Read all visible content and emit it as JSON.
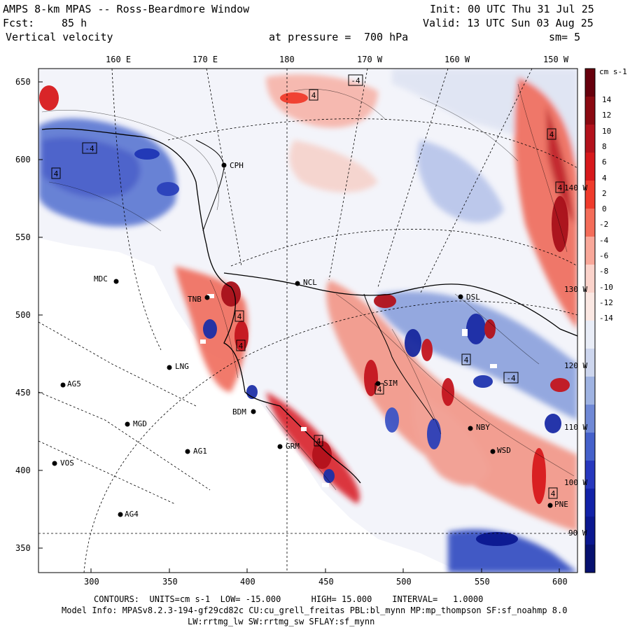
{
  "header": {
    "title": "AMPS 8-km MPAS -- Ross-Beardmore Window",
    "fcst_label": "Fcst:",
    "fcst_value": "85 h",
    "field": "Vertical velocity",
    "init": "Init: 00 UTC Thu 31 Jul 25",
    "valid": "Valid: 13 UTC Sun 03 Aug 25",
    "pressure_label": "at pressure =",
    "pressure_value": "700 hPa",
    "sm": "sm= 5"
  },
  "top_axis": [
    "160 E",
    "170 E",
    "180",
    "170 W",
    "160 W",
    "150 W"
  ],
  "left_axis": [
    "650",
    "600",
    "550",
    "500",
    "450",
    "400",
    "350"
  ],
  "bottom_axis": [
    "300",
    "350",
    "400",
    "450",
    "500",
    "550",
    "600"
  ],
  "right_lon_labels": [
    "140 W",
    "130 W",
    "120 W",
    "110 W",
    "100 W",
    "90 W"
  ],
  "colorbar": {
    "unit": "cm s-1",
    "ticks": [
      "14",
      "12",
      "10",
      "8",
      "6",
      "4",
      "2",
      "0",
      "-2",
      "-4",
      "-6",
      "-8",
      "-10",
      "-12",
      "-14"
    ],
    "colors": [
      "#67000d",
      "#8b0a12",
      "#b3121c",
      "#d7191c",
      "#ef3b2c",
      "#f46d5a",
      "#f9a89a",
      "#fbd3cb",
      "#fbe8e3",
      "#e9edf7",
      "#cdd6ee",
      "#9fb3e2",
      "#7089d6",
      "#4561cb",
      "#2738be",
      "#1222a8",
      "#0b1890",
      "#071170"
    ]
  },
  "stations": [
    {
      "name": "CPH"
    },
    {
      "name": "NCL"
    },
    {
      "name": "MDC"
    },
    {
      "name": "TNB"
    },
    {
      "name": "LNG"
    },
    {
      "name": "AG5"
    },
    {
      "name": "MGD"
    },
    {
      "name": "BDM"
    },
    {
      "name": "AG1"
    },
    {
      "name": "GRM"
    },
    {
      "name": "VOS"
    },
    {
      "name": "AG4"
    },
    {
      "name": "SIM"
    },
    {
      "name": "NBY"
    },
    {
      "name": "WSD"
    },
    {
      "name": "PNE"
    },
    {
      "name": "DSL"
    }
  ],
  "contour_labels": [
    "4",
    "-4",
    "4",
    "4",
    "4",
    "4",
    "-4",
    "4",
    "4",
    "-4",
    "4",
    "4",
    "4"
  ],
  "footer": {
    "contours": "CONTOURS:  UNITS=cm s-1  LOW= -15.000      HIGH= 15.000    INTERVAL=   1.0000",
    "model_info": "Model Info: MPASv8.2.3-194-gf29cd82c CU:cu_grell_freitas PBL:bl_mynn MP:mp_thompson SF:sf_noahmp 8.0",
    "physics": "LW:rrtmg_lw SW:rrtmg_sw SFLAY:sf_mynn"
  }
}
